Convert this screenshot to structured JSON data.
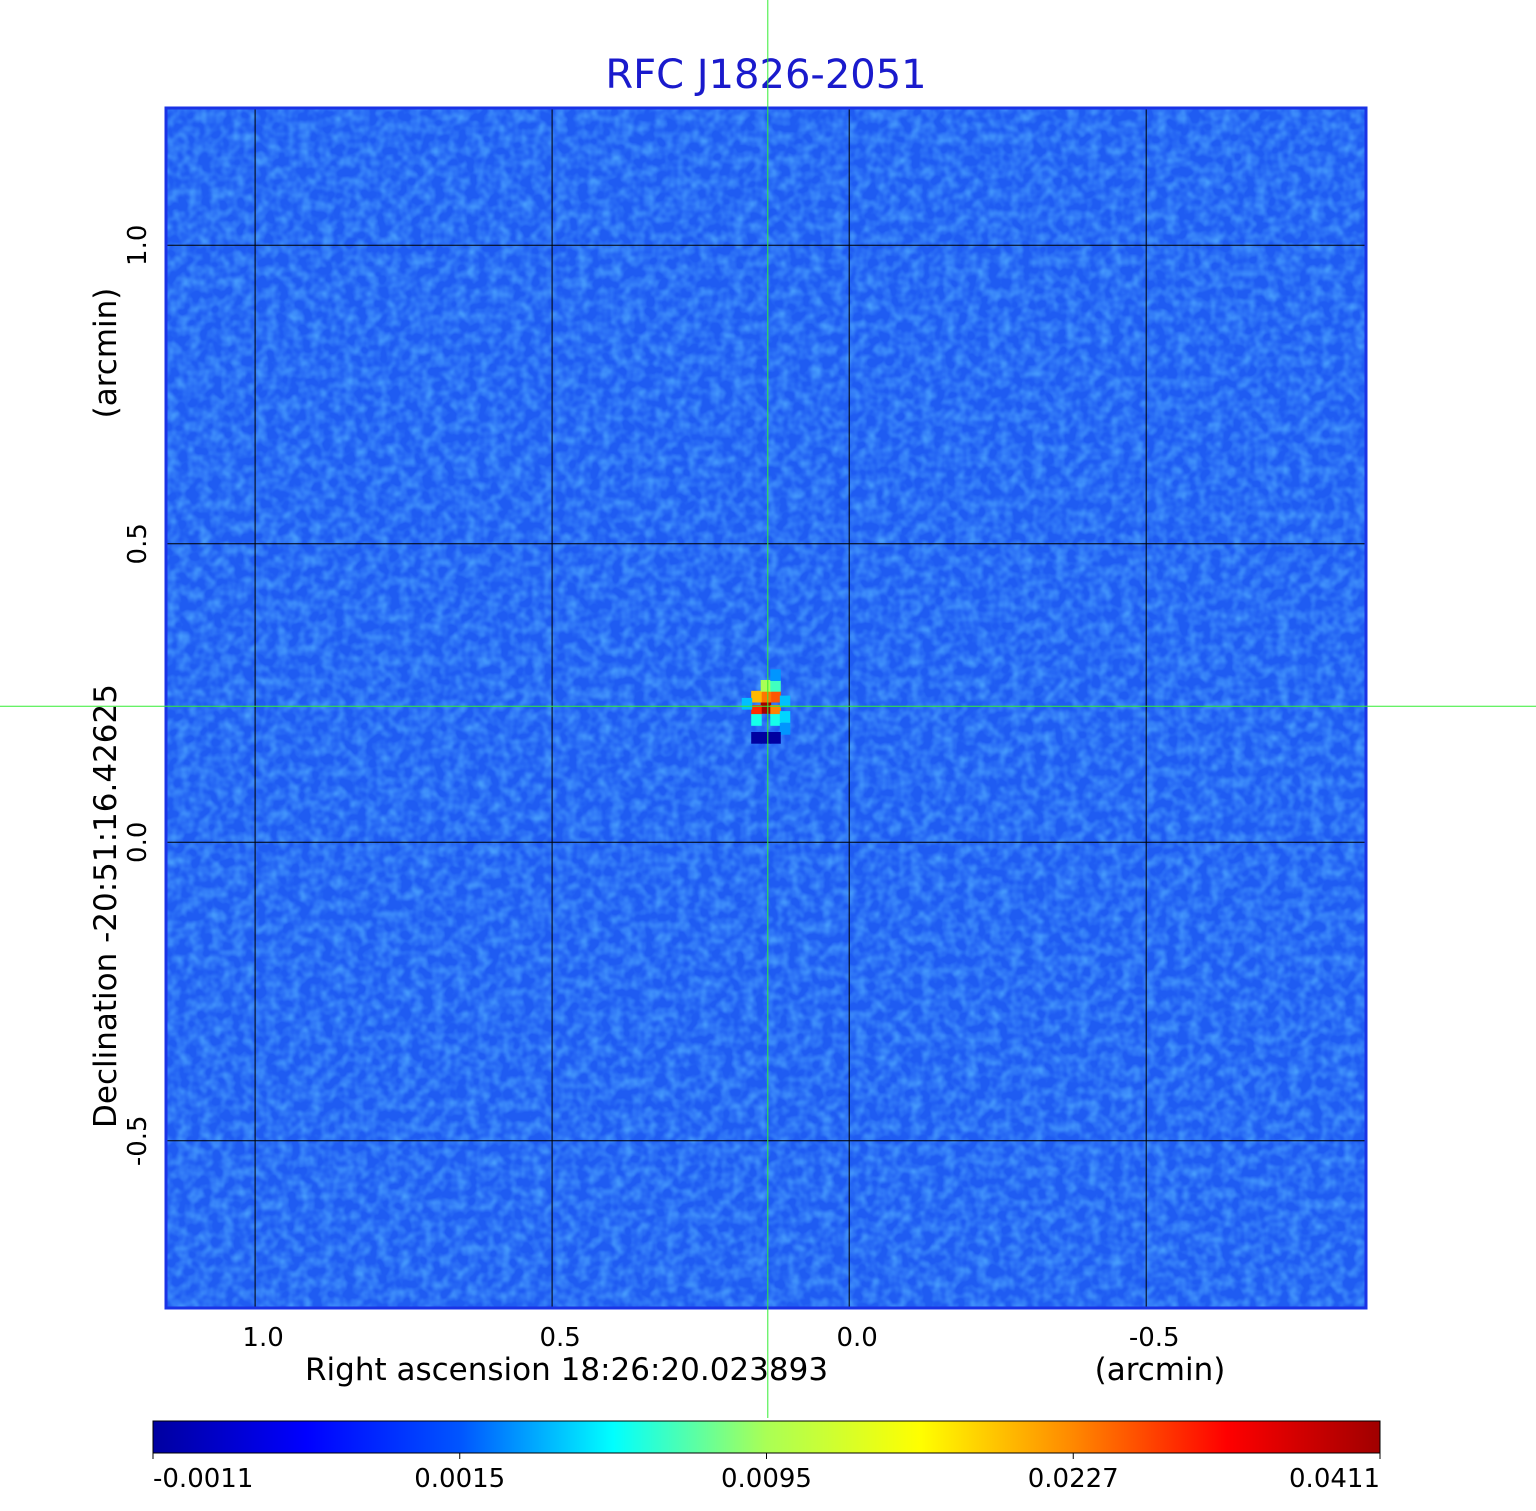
{
  "chart_data": {
    "type": "heatmap",
    "title": "RFC J1826-2051",
    "xlabel": "Right ascension  18:26:20.023893",
    "xunit": "(arcmin)",
    "ylabel": "Declination  -20:51:16.42625",
    "yunit": "(arcmin)",
    "xlim": [
      1.15,
      -0.87
    ],
    "ylim": [
      -0.78,
      1.23
    ],
    "x_ticks": [
      "1.0",
      "0.5",
      "0.0",
      "-0.5"
    ],
    "x_tick_values": [
      1.0,
      0.5,
      0.0,
      -0.5
    ],
    "y_ticks": [
      "1.0",
      "0.5",
      "0.0",
      "-0.5"
    ],
    "y_tick_values": [
      1.0,
      0.5,
      0.0,
      -0.5
    ],
    "grid": true,
    "crosshair": {
      "x": 0.137,
      "y": 0.228,
      "color": "#33ee33"
    },
    "colorbar": {
      "ticks": [
        "-0.0011",
        "0.0015",
        "0.0095",
        "0.0227",
        "0.0411"
      ],
      "colors": [
        "#0000a0",
        "#0000ff",
        "#0055ff",
        "#00ffff",
        "#aaff55",
        "#ffff00",
        "#ff8800",
        "#ff0000",
        "#a00000"
      ]
    },
    "source": {
      "x": 0.137,
      "y": 0.228,
      "peak": 0.0411,
      "pixels": [
        {
          "x": 0.14,
          "y": 0.225,
          "value": 0.0411
        },
        {
          "x": 0.156,
          "y": 0.22,
          "value": 0.029
        },
        {
          "x": 0.124,
          "y": 0.244,
          "value": 0.026
        },
        {
          "x": 0.14,
          "y": 0.244,
          "value": 0.024
        },
        {
          "x": 0.124,
          "y": 0.22,
          "value": 0.023
        },
        {
          "x": 0.156,
          "y": 0.244,
          "value": 0.02
        },
        {
          "x": 0.14,
          "y": 0.262,
          "value": 0.0095
        },
        {
          "x": 0.124,
          "y": 0.262,
          "value": 0.007
        },
        {
          "x": 0.156,
          "y": 0.205,
          "value": 0.006
        },
        {
          "x": 0.124,
          "y": 0.205,
          "value": 0.006
        },
        {
          "x": 0.108,
          "y": 0.21,
          "value": 0.0045
        },
        {
          "x": 0.172,
          "y": 0.232,
          "value": 0.004
        },
        {
          "x": 0.108,
          "y": 0.236,
          "value": 0.004
        },
        {
          "x": 0.108,
          "y": 0.19,
          "value": 0.003
        },
        {
          "x": 0.124,
          "y": 0.28,
          "value": 0.003
        },
        {
          "x": 0.124,
          "y": 0.175,
          "value": -0.0011
        },
        {
          "x": 0.14,
          "y": 0.175,
          "value": -0.0011
        },
        {
          "x": 0.156,
          "y": 0.175,
          "value": -0.0011
        }
      ]
    }
  }
}
